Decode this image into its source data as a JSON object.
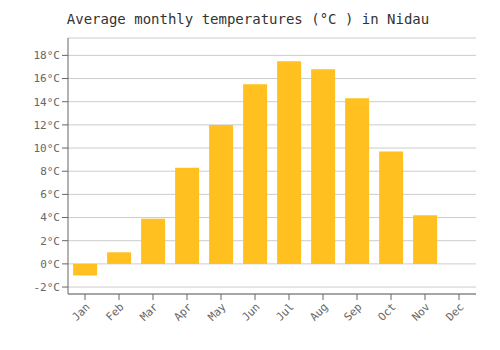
{
  "chart_data": {
    "type": "bar",
    "title": "Average monthly temperatures (°C ) in Nidau",
    "categories": [
      "Jan",
      "Feb",
      "Mar",
      "Apr",
      "May",
      "Jun",
      "Jul",
      "Aug",
      "Sep",
      "Oct",
      "Nov",
      "Dec"
    ],
    "values": [
      -1.0,
      1.0,
      3.9,
      8.3,
      12.0,
      15.5,
      17.5,
      16.8,
      14.3,
      9.7,
      4.2,
      0.0
    ],
    "color": "#FFC020",
    "ylim": [
      -2.6,
      19.5
    ],
    "yticks": [
      {
        "value": -2,
        "label": "-2°C"
      },
      {
        "value": 0,
        "label": "0°C"
      },
      {
        "value": 2,
        "label": "2°C"
      },
      {
        "value": 4,
        "label": "4°C"
      },
      {
        "value": 6,
        "label": "6°C"
      },
      {
        "value": 8,
        "label": "8°C"
      },
      {
        "value": 10,
        "label": "10°C"
      },
      {
        "value": 12,
        "label": "12°C"
      },
      {
        "value": 14,
        "label": "14°C"
      },
      {
        "value": 16,
        "label": "16°C"
      },
      {
        "value": 18,
        "label": "18°C"
      }
    ],
    "grid": true
  }
}
